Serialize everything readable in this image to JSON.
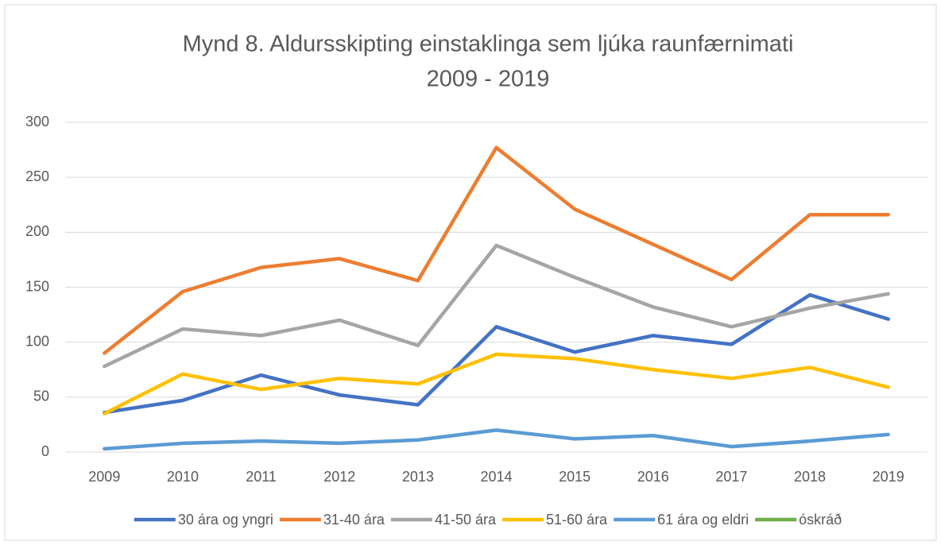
{
  "chart_data": {
    "type": "line",
    "title": [
      "Mynd 8. Aldursskipting einstaklinga sem ljúka raunfærnimati",
      "2009 - 2019"
    ],
    "categories": [
      "2009",
      "2010",
      "2011",
      "2012",
      "2013",
      "2014",
      "2015",
      "2016",
      "2017",
      "2018",
      "2019"
    ],
    "series": [
      {
        "name": "30 ára og yngri",
        "color": "#4472c4",
        "values": [
          36,
          47,
          70,
          52,
          43,
          114,
          91,
          106,
          98,
          143,
          121
        ]
      },
      {
        "name": "31-40 ára",
        "color": "#ed7d31",
        "values": [
          90,
          146,
          168,
          176,
          156,
          277,
          221,
          189,
          157,
          216,
          216
        ]
      },
      {
        "name": "41-50 ára",
        "color": "#a5a5a5",
        "values": [
          78,
          112,
          106,
          120,
          97,
          188,
          159,
          132,
          114,
          131,
          144
        ]
      },
      {
        "name": "51-60 ára",
        "color": "#ffc000",
        "values": [
          35,
          71,
          57,
          67,
          62,
          89,
          85,
          75,
          67,
          77,
          59
        ]
      },
      {
        "name": "61 ára og eldri",
        "color": "#5b9bd5",
        "values": [
          3,
          8,
          10,
          8,
          11,
          20,
          12,
          15,
          5,
          10,
          16
        ]
      },
      {
        "name": "óskráð",
        "color": "#70ad47",
        "values": [
          null,
          null,
          null,
          null,
          null,
          null,
          null,
          null,
          null,
          null,
          null
        ]
      }
    ],
    "ylim": [
      0,
      300
    ],
    "yticks": [
      0,
      50,
      100,
      150,
      200,
      250,
      300
    ],
    "grid": true,
    "legend": "bottom"
  }
}
